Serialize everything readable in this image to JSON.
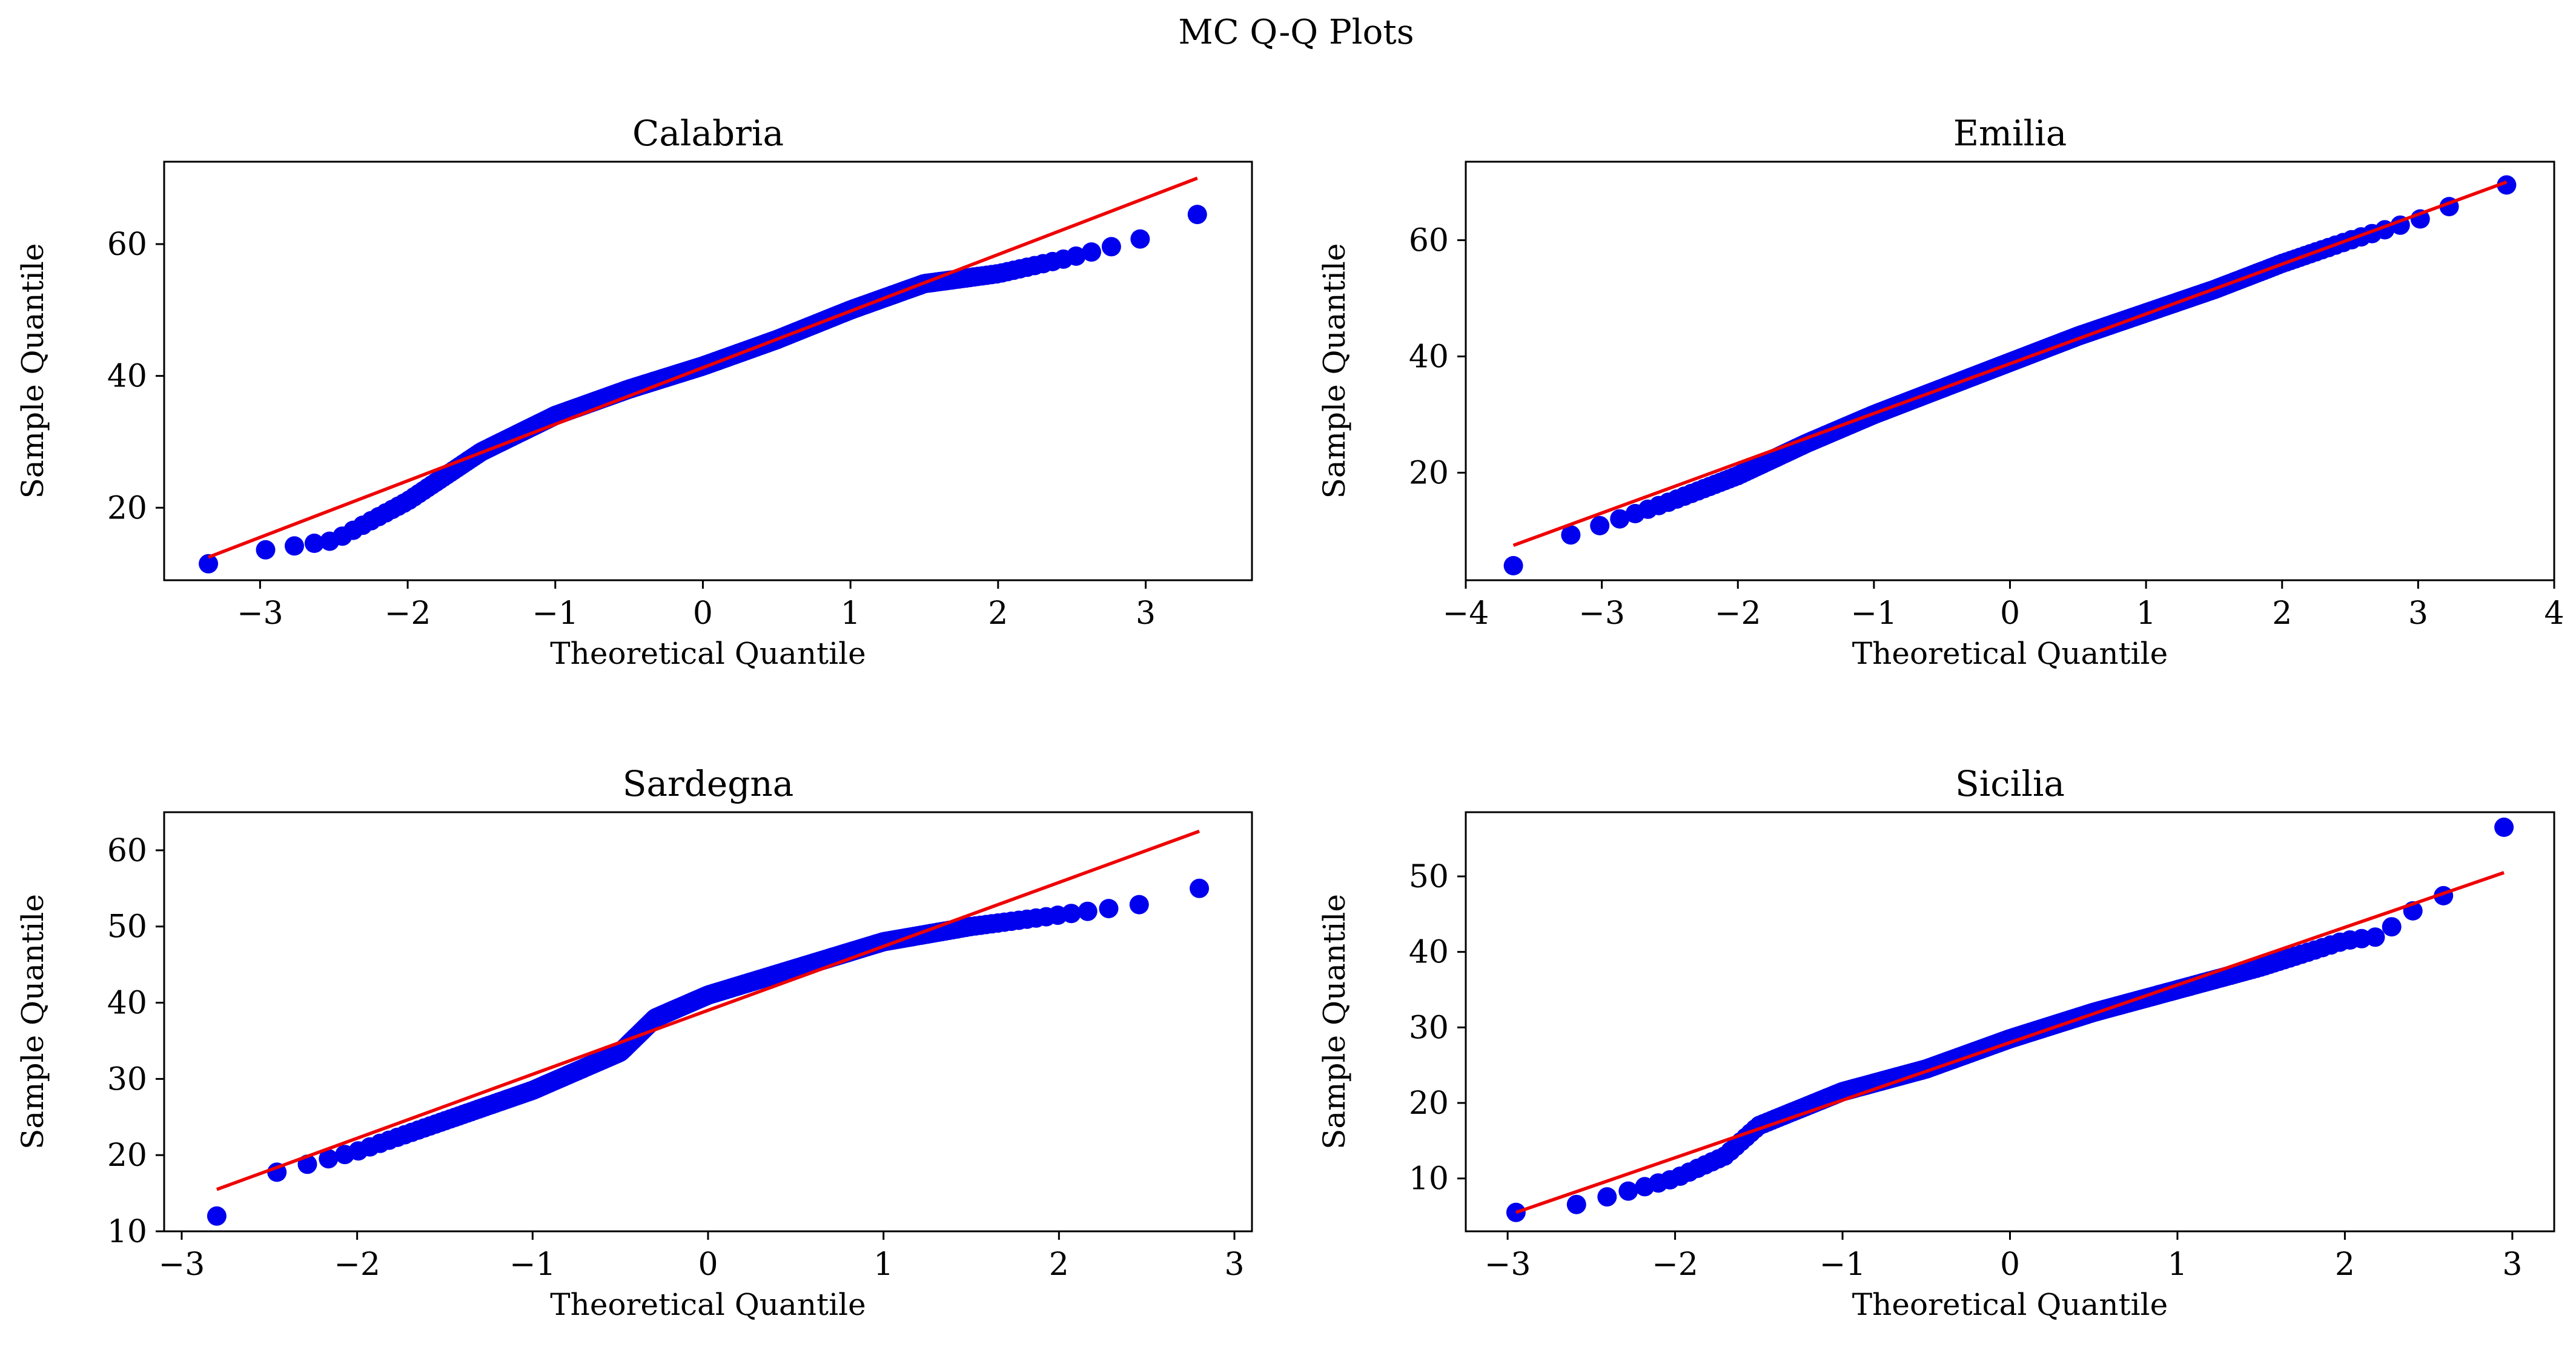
{
  "figure": {
    "title": "MC Q-Q Plots"
  },
  "colors": {
    "points": "#0000ee",
    "line": "#ee0000",
    "axes": "#000000"
  },
  "chart_data": [
    {
      "type": "scatter",
      "title": "Calabria",
      "xlabel": "Theoretical Quantile",
      "ylabel": "Sample Quantile",
      "xlim": [
        -3.65,
        3.72
      ],
      "ylim": [
        9,
        72.5
      ],
      "xticks": [
        -3,
        -2,
        -1,
        0,
        1,
        2,
        3
      ],
      "xtick_labels": [
        "−3",
        "−2",
        "−1",
        "0",
        "1",
        "2",
        "3"
      ],
      "yticks": [
        20,
        40,
        60
      ],
      "ytick_labels": [
        "20",
        "40",
        "60"
      ],
      "reference_line": {
        "x": [
          -3.35,
          3.35
        ],
        "y": [
          12.5,
          70.0
        ]
      },
      "quantile_profile": {
        "x": [
          -3.35,
          -3.0,
          -2.5,
          -2.0,
          -1.5,
          -1.0,
          -0.5,
          0.0,
          0.5,
          1.0,
          1.5,
          2.0,
          2.5,
          3.0,
          3.35
        ],
        "y": [
          11.5,
          13.5,
          15.0,
          21.0,
          28.5,
          34.0,
          38.0,
          41.5,
          45.5,
          50.0,
          54.0,
          55.5,
          58.0,
          61.0,
          64.5
        ]
      },
      "n_points": 400
    },
    {
      "type": "scatter",
      "title": "Emilia",
      "xlabel": "Theoretical Quantile",
      "ylabel": "Sample Quantile",
      "xlim": [
        -4.0,
        4.0
      ],
      "ylim": [
        1.5,
        73.5
      ],
      "xticks": [
        -4,
        -3,
        -2,
        -1,
        0,
        1,
        2,
        3,
        4
      ],
      "xtick_labels": [
        "−4",
        "−3",
        "−2",
        "−1",
        "0",
        "1",
        "2",
        "3",
        "4"
      ],
      "yticks": [
        20,
        40,
        60
      ],
      "ytick_labels": [
        "20",
        "40",
        "60"
      ],
      "reference_line": {
        "x": [
          -3.65,
          3.65
        ],
        "y": [
          7.5,
          70.0
        ]
      },
      "quantile_profile": {
        "x": [
          -3.65,
          -3.4,
          -3.0,
          -2.5,
          -2.0,
          -1.5,
          -1.0,
          -0.5,
          0.0,
          0.5,
          1.0,
          1.5,
          2.0,
          2.5,
          3.0,
          3.4,
          3.65
        ],
        "y": [
          4.0,
          8.0,
          11.0,
          15.0,
          19.5,
          25.0,
          30.0,
          34.5,
          39.0,
          43.5,
          47.5,
          51.5,
          56.0,
          60.0,
          63.5,
          67.5,
          69.5
        ]
      },
      "n_points": 400
    },
    {
      "type": "scatter",
      "title": "Sardegna",
      "xlabel": "Theoretical Quantile",
      "ylabel": "Sample Quantile",
      "xlim": [
        -3.1,
        3.1
      ],
      "ylim": [
        10.0,
        65.0
      ],
      "xticks": [
        -3,
        -2,
        -1,
        0,
        1,
        2,
        3
      ],
      "xtick_labels": [
        "−3",
        "−2",
        "−1",
        "0",
        "1",
        "2",
        "3"
      ],
      "yticks": [
        10,
        20,
        30,
        40,
        50,
        60
      ],
      "ytick_labels": [
        "10",
        "20",
        "30",
        "40",
        "50",
        "60"
      ],
      "reference_line": {
        "x": [
          -2.8,
          2.8
        ],
        "y": [
          15.5,
          62.5
        ]
      },
      "quantile_profile": {
        "x": [
          -2.8,
          -2.5,
          -2.0,
          -1.5,
          -1.0,
          -0.5,
          -0.3,
          0.0,
          0.5,
          1.0,
          1.5,
          2.0,
          2.5,
          2.8
        ],
        "y": [
          12.0,
          17.5,
          20.5,
          24.5,
          28.5,
          33.5,
          38.0,
          41.0,
          44.5,
          48.0,
          50.0,
          51.5,
          53.0,
          55.0
        ]
      },
      "n_points": 300
    },
    {
      "type": "scatter",
      "title": "Sicilia",
      "xlabel": "Theoretical Quantile",
      "ylabel": "Sample Quantile",
      "xlim": [
        -3.25,
        3.25
      ],
      "ylim": [
        3.0,
        58.5
      ],
      "xticks": [
        -3,
        -2,
        -1,
        0,
        1,
        2,
        3
      ],
      "xtick_labels": [
        "−3",
        "−2",
        "−1",
        "0",
        "1",
        "2",
        "3"
      ],
      "yticks": [
        10,
        20,
        30,
        40,
        50
      ],
      "ytick_labels": [
        "10",
        "20",
        "30",
        "40",
        "50"
      ],
      "reference_line": {
        "x": [
          -2.95,
          2.95
        ],
        "y": [
          5.5,
          50.5
        ]
      },
      "quantile_profile": {
        "x": [
          -2.95,
          -2.7,
          -2.5,
          -2.0,
          -1.7,
          -1.5,
          -1.0,
          -0.5,
          0.0,
          0.5,
          1.0,
          1.5,
          2.0,
          2.2,
          2.5,
          2.7,
          2.95
        ],
        "y": [
          5.5,
          6.0,
          7.0,
          10.0,
          13.0,
          17.0,
          21.5,
          24.5,
          28.5,
          32.0,
          35.0,
          38.0,
          41.5,
          42.0,
          47.0,
          48.0,
          56.5
        ]
      },
      "n_points": 300
    }
  ]
}
